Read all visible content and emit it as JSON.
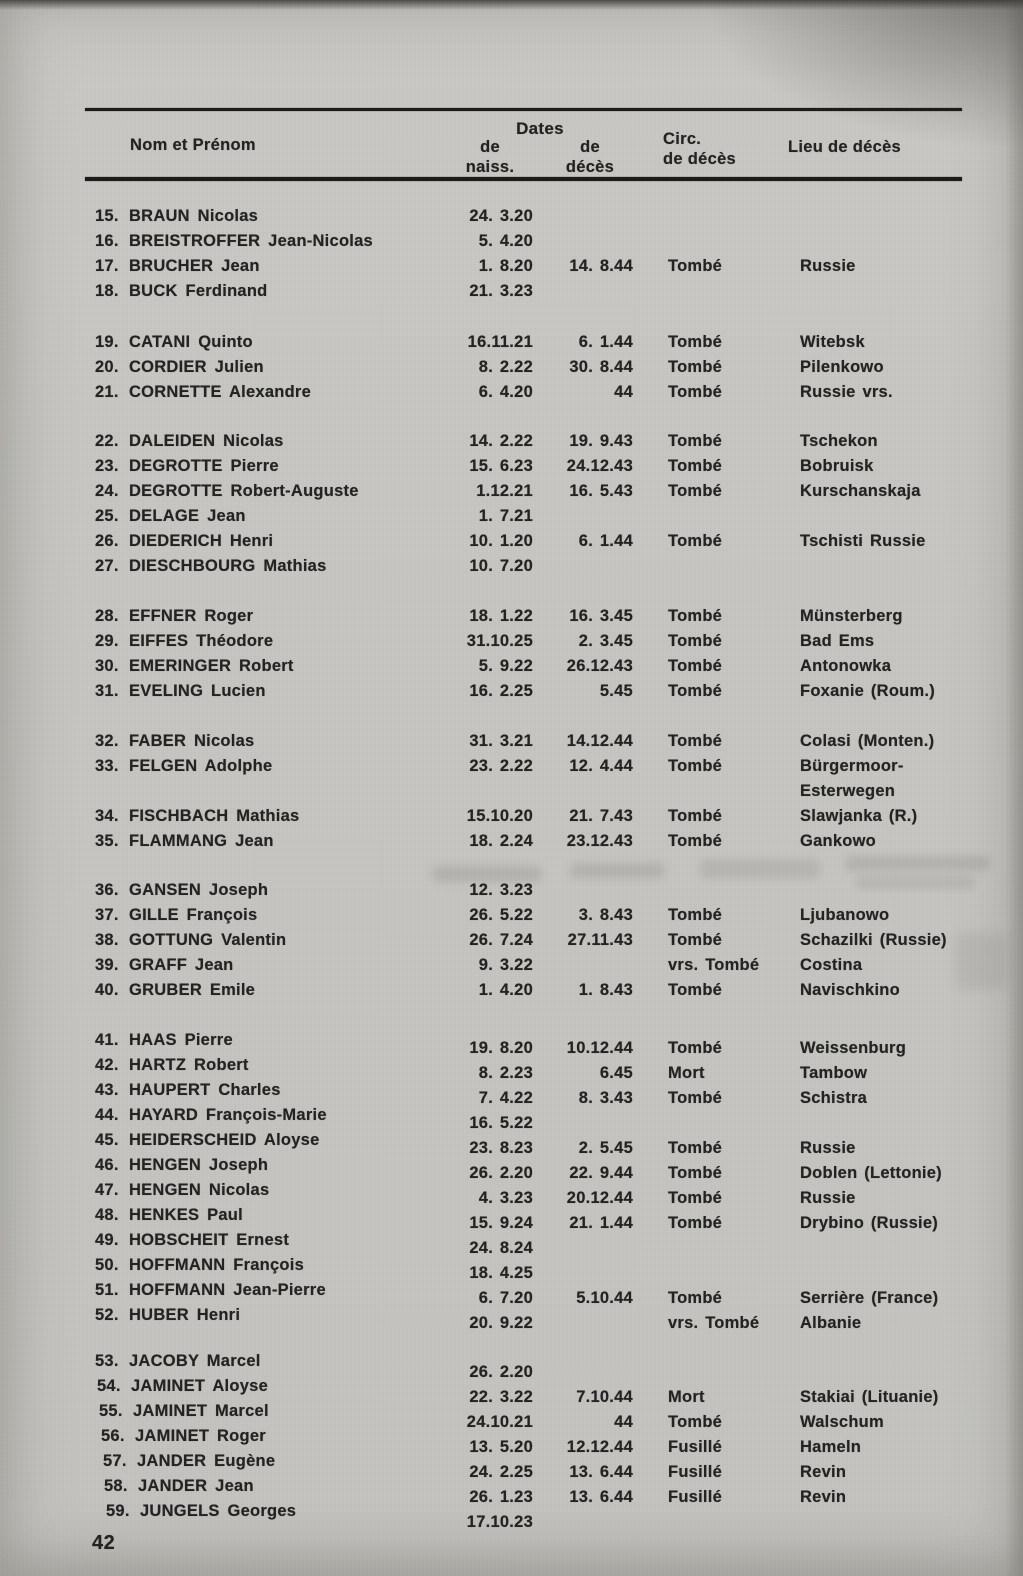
{
  "colors": {
    "paper": "#c6c5c1",
    "ink": "#232321"
  },
  "page": {
    "number": "42"
  },
  "table": {
    "headers": {
      "name": "Nom et Prénom",
      "dates_group": "Dates",
      "birth_line1": "de",
      "birth_line2": "naiss.",
      "death_line1": "de",
      "death_line2": "décès",
      "circ_line1": "Circ.",
      "circ_line2": "de décès",
      "place": "Lieu de décès"
    },
    "groups": [
      {
        "rows": [
          {
            "num": "15.",
            "name": "BRAUN Nicolas",
            "birth": "24. 3.20",
            "death": "",
            "circ": "",
            "place": ""
          },
          {
            "num": "16.",
            "name": "BREISTROFFER Jean-Nicolas",
            "birth": "5. 4.20",
            "death": "",
            "circ": "",
            "place": ""
          },
          {
            "num": "17.",
            "name": "BRUCHER Jean",
            "birth": "1. 8.20",
            "death": "14. 8.44",
            "circ": "Tombé",
            "place": "Russie"
          },
          {
            "num": "18.",
            "name": "BUCK Ferdinand",
            "birth": "21. 3.23",
            "death": "",
            "circ": "",
            "place": ""
          }
        ]
      },
      {
        "rows": [
          {
            "num": "19.",
            "name": "CATANI Quinto",
            "birth": "16.11.21",
            "death": "6. 1.44",
            "circ": "Tombé",
            "place": "Witebsk"
          },
          {
            "num": "20.",
            "name": "CORDIER Julien",
            "birth": "8. 2.22",
            "death": "30. 8.44",
            "circ": "Tombé",
            "place": "Pilenkowo"
          },
          {
            "num": "21.",
            "name": "CORNETTE Alexandre",
            "birth": "6. 4.20",
            "death": "44",
            "circ": "Tombé",
            "place": "Russie vrs."
          }
        ]
      },
      {
        "rows": [
          {
            "num": "22.",
            "name": "DALEIDEN Nicolas",
            "birth": "14. 2.22",
            "death": "19. 9.43",
            "circ": "Tombé",
            "place": "Tschekon"
          },
          {
            "num": "23.",
            "name": "DEGROTTE Pierre",
            "birth": "15. 6.23",
            "death": "24.12.43",
            "circ": "Tombé",
            "place": "Bobruisk"
          },
          {
            "num": "24.",
            "name": "DEGROTTE Robert-Auguste",
            "birth": "1.12.21",
            "death": "16. 5.43",
            "circ": "Tombé",
            "place": "Kurschanskaja"
          },
          {
            "num": "25.",
            "name": "DELAGE Jean",
            "birth": "1. 7.21",
            "death": "",
            "circ": "",
            "place": ""
          },
          {
            "num": "26.",
            "name": "DIEDERICH Henri",
            "birth": "10. 1.20",
            "death": "6. 1.44",
            "circ": "Tombé",
            "place": "Tschisti Russie"
          },
          {
            "num": "27.",
            "name": "DIESCHBOURG Mathias",
            "birth": "10. 7.20",
            "death": "",
            "circ": "",
            "place": ""
          }
        ]
      },
      {
        "rows": [
          {
            "num": "28.",
            "name": "EFFNER Roger",
            "birth": "18. 1.22",
            "death": "16. 3.45",
            "circ": "Tombé",
            "place": "Münsterberg"
          },
          {
            "num": "29.",
            "name": "EIFFES Théodore",
            "birth": "31.10.25",
            "death": "2. 3.45",
            "circ": "Tombé",
            "place": "Bad Ems"
          },
          {
            "num": "30.",
            "name": "EMERINGER Robert",
            "birth": "5. 9.22",
            "death": "26.12.43",
            "circ": "Tombé",
            "place": "Antonowka"
          },
          {
            "num": "31.",
            "name": "EVELING Lucien",
            "birth": "16. 2.25",
            "death": "5.45",
            "circ": "Tombé",
            "place": "Foxanie (Roum.)"
          }
        ]
      },
      {
        "rows": [
          {
            "num": "32.",
            "name": "FABER Nicolas",
            "birth": "31. 3.21",
            "death": "14.12.44",
            "circ": "Tombé",
            "place": "Colasi (Monten.)"
          },
          {
            "num": "33.",
            "name": "FELGEN Adolphe",
            "birth": "23. 2.22",
            "death": "12. 4.44",
            "circ": "Tombé",
            "place": "Bürgermoor-\nEsterwegen"
          },
          {
            "num": "34.",
            "name": "FISCHBACH Mathias",
            "birth": "15.10.20",
            "death": "21. 7.43",
            "circ": "Tombé",
            "place": "Slawjanka (R.)"
          },
          {
            "num": "35.",
            "name": "FLAMMANG Jean",
            "birth": "18. 2.24",
            "death": "23.12.43",
            "circ": "Tombé",
            "place": "Gankowo"
          }
        ]
      },
      {
        "rows": [
          {
            "num": "36.",
            "name": "GANSEN Joseph",
            "birth": "12. 3.23",
            "death": "",
            "circ": "",
            "place": ""
          },
          {
            "num": "37.",
            "name": "GILLE François",
            "birth": "26. 5.22",
            "death": "3. 8.43",
            "circ": "Tombé",
            "place": "Ljubanowo"
          },
          {
            "num": "38.",
            "name": "GOTTUNG Valentin",
            "birth": "26. 7.24",
            "death": "27.11.43",
            "circ": "Tombé",
            "place": "Schazilki (Russie)"
          },
          {
            "num": "39.",
            "name": "GRAFF Jean",
            "birth": "9. 3.22",
            "death": "",
            "circ": "vrs. Tombé",
            "place": "Costina"
          },
          {
            "num": "40.",
            "name": "GRUBER Emile",
            "birth": "1. 4.20",
            "death": "1. 8.43",
            "circ": "Tombé",
            "place": "Navischkino"
          }
        ]
      },
      {
        "rows": [
          {
            "num": "41.",
            "name": "HAAS Pierre",
            "birth": "19. 8.20",
            "death": "10.12.44",
            "circ": "Tombé",
            "place": "Weissenburg"
          },
          {
            "num": "42.",
            "name": "HARTZ Robert",
            "birth": "8. 2.23",
            "death": "6.45",
            "circ": "Mort",
            "place": "Tambow"
          },
          {
            "num": "43.",
            "name": "HAUPERT Charles",
            "birth": "7. 4.22",
            "death": "8. 3.43",
            "circ": "Tombé",
            "place": "Schistra"
          },
          {
            "num": "44.",
            "name": "HAYARD François-Marie",
            "birth": "16. 5.22",
            "death": "",
            "circ": "",
            "place": ""
          },
          {
            "num": "45.",
            "name": "HEIDERSCHEID Aloyse",
            "birth": "23. 8.23",
            "death": "2. 5.45",
            "circ": "Tombé",
            "place": "Russie"
          },
          {
            "num": "46.",
            "name": "HENGEN Joseph",
            "birth": "26. 2.20",
            "death": "22. 9.44",
            "circ": "Tombé",
            "place": "Doblen (Lettonie)"
          },
          {
            "num": "47.",
            "name": "HENGEN Nicolas",
            "birth": "4. 3.23",
            "death": "20.12.44",
            "circ": "Tombé",
            "place": "Russie"
          },
          {
            "num": "48.",
            "name": "HENKES Paul",
            "birth": "15. 9.24",
            "death": "21. 1.44",
            "circ": "Tombé",
            "place": "Drybino (Russie)"
          },
          {
            "num": "49.",
            "name": "HOBSCHEIT Ernest",
            "birth": "24. 8.24",
            "death": "",
            "circ": "",
            "place": ""
          },
          {
            "num": "50.",
            "name": "HOFFMANN François",
            "birth": "18. 4.25",
            "death": "",
            "circ": "",
            "place": ""
          },
          {
            "num": "51.",
            "name": "HOFFMANN Jean-Pierre",
            "birth": "6. 7.20",
            "death": "5.10.44",
            "circ": "Tombé",
            "place": "Serrière (France)"
          },
          {
            "num": "52.",
            "name": "HUBER Henri",
            "birth": "20. 9.22",
            "death": "",
            "circ": "vrs. Tombé",
            "place": "Albanie"
          }
        ]
      },
      {
        "rows": [
          {
            "num": "53.",
            "name": "JACOBY Marcel",
            "birth": "26. 2.20",
            "death": "",
            "circ": "",
            "place": ""
          },
          {
            "num": "54.",
            "name": "JAMINET Aloyse",
            "birth": "22. 3.22",
            "death": "7.10.44",
            "circ": "Mort",
            "place": "Stakiai (Lituanie)"
          },
          {
            "num": "55.",
            "name": "JAMINET Marcel",
            "birth": "24.10.21",
            "death": "44",
            "circ": "Tombé",
            "place": "Walschum"
          },
          {
            "num": "56.",
            "name": "JAMINET Roger",
            "birth": "13. 5.20",
            "death": "12.12.44",
            "circ": "Fusillé",
            "place": "Hameln"
          },
          {
            "num": "57.",
            "name": "JANDER Eugène",
            "birth": "24. 2.25",
            "death": "13. 6.44",
            "circ": "Fusillé",
            "place": "Revin"
          },
          {
            "num": "58.",
            "name": "JANDER Jean",
            "birth": "26. 1.23",
            "death": "13. 6.44",
            "circ": "Fusillé",
            "place": "Revin"
          },
          {
            "num": "59.",
            "name": "JUNGELS Georges",
            "birth": "17.10.23",
            "death": "",
            "circ": "",
            "place": ""
          }
        ]
      }
    ]
  }
}
